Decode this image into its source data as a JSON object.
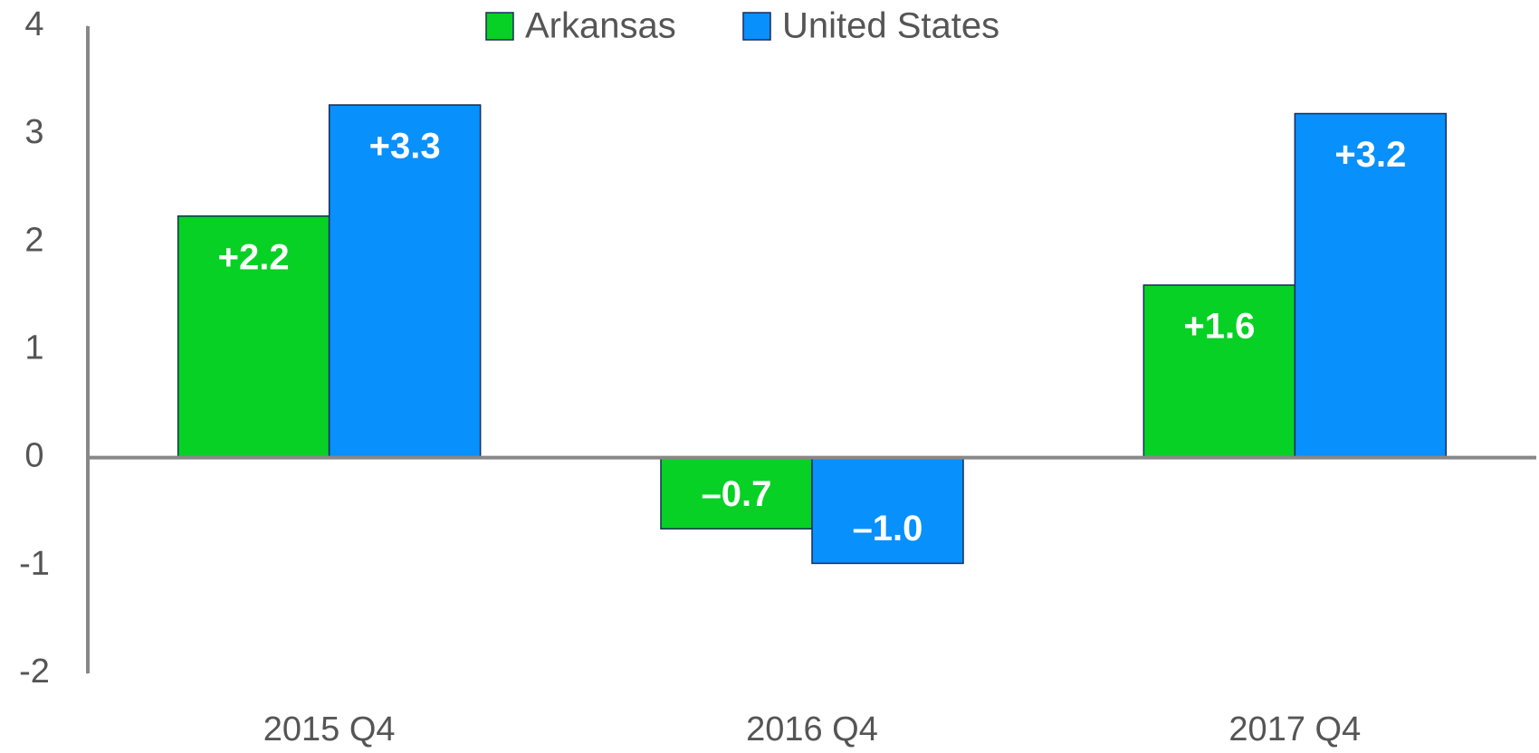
{
  "chart_data": {
    "type": "bar",
    "categories": [
      "2015 Q4",
      "2016 Q4",
      "2017 Q4"
    ],
    "series": [
      {
        "name": "Arkansas",
        "color": "#07d124",
        "values": [
          2.24,
          -0.66,
          1.6
        ],
        "value_labels": [
          "+2.2",
          "–0.7",
          "+1.6"
        ]
      },
      {
        "name": "United States",
        "color": "#0890fc",
        "values": [
          3.27,
          -0.98,
          3.19
        ],
        "value_labels": [
          "+3.3",
          "–1.0",
          "+3.2"
        ]
      }
    ],
    "ylim": [
      -2,
      4
    ],
    "yticks": [
      -2,
      -1,
      0,
      1,
      2,
      3,
      4
    ],
    "grid": false,
    "legend": "top"
  }
}
